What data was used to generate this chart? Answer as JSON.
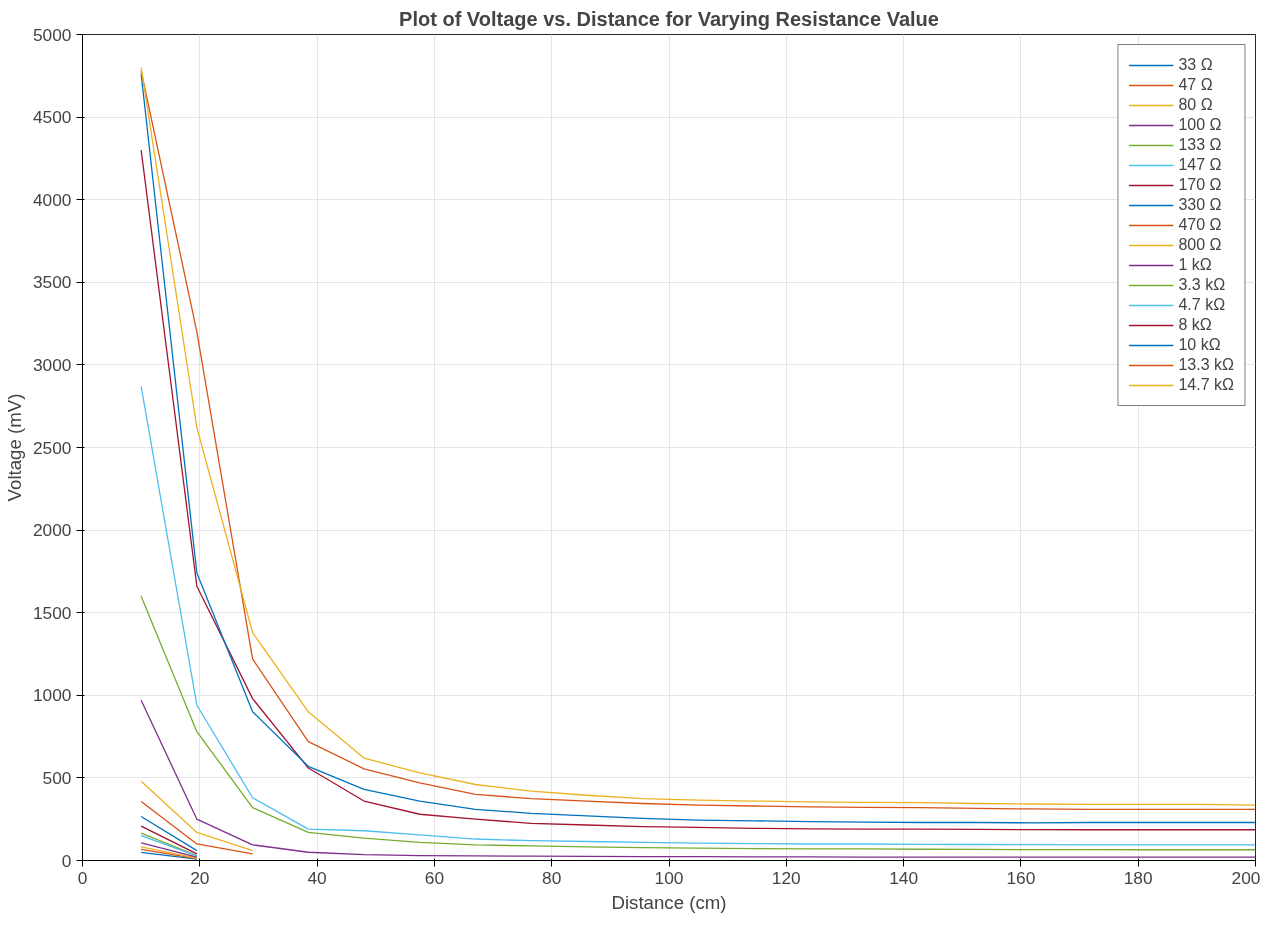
{
  "chart_data": {
    "type": "line",
    "title": "Plot of Voltage vs. Distance for Varying Resistance Value",
    "xlabel": "Distance (cm)",
    "ylabel": "Voltage (mV)",
    "x": [
      10,
      19.5,
      29,
      38.5,
      48,
      57.5,
      67,
      76.5,
      86,
      95.5,
      105,
      114.5,
      124,
      133.5,
      143,
      152.5,
      162,
      171.5,
      181,
      190.5,
      200
    ],
    "xlim": [
      0,
      200
    ],
    "ylim": [
      0,
      5000
    ],
    "xticks": [
      0,
      20,
      40,
      60,
      80,
      100,
      120,
      140,
      160,
      180,
      200
    ],
    "yticks": [
      0,
      500,
      1000,
      1500,
      2000,
      2500,
      3000,
      3500,
      4000,
      4500,
      5000
    ],
    "grid": true,
    "legend": "top right",
    "line_style": "solid",
    "marker": "none",
    "series": [
      {
        "name": "33 Ω",
        "color": "#0072bd",
        "values": [
          49,
          8,
          null,
          null,
          null,
          null,
          null,
          null,
          null,
          null,
          null,
          null,
          null,
          null,
          null,
          null,
          null,
          null,
          null,
          null,
          null
        ]
      },
      {
        "name": "47 Ω",
        "color": "#d95319",
        "values": [
          67,
          12,
          null,
          null,
          null,
          null,
          null,
          null,
          null,
          null,
          null,
          null,
          null,
          null,
          null,
          null,
          null,
          null,
          null,
          null,
          null
        ]
      },
      {
        "name": "80 Ω",
        "color": "#edb120",
        "values": [
          82,
          15,
          null,
          null,
          null,
          null,
          null,
          null,
          null,
          null,
          null,
          null,
          null,
          null,
          null,
          null,
          null,
          null,
          null,
          null,
          null
        ]
      },
      {
        "name": "100 Ω",
        "color": "#7e2f8e",
        "values": [
          106,
          20,
          null,
          null,
          null,
          null,
          null,
          null,
          null,
          null,
          null,
          null,
          null,
          null,
          null,
          null,
          null,
          null,
          null,
          null,
          null
        ]
      },
      {
        "name": "133 Ω",
        "color": "#77ac30",
        "values": [
          166,
          30,
          null,
          null,
          null,
          null,
          null,
          null,
          null,
          null,
          null,
          null,
          null,
          null,
          null,
          null,
          null,
          null,
          null,
          null,
          null
        ]
      },
      {
        "name": "147 Ω",
        "color": "#4dbeee",
        "values": [
          150,
          28,
          null,
          null,
          null,
          null,
          null,
          null,
          null,
          null,
          null,
          null,
          null,
          null,
          null,
          null,
          null,
          null,
          null,
          null,
          null
        ]
      },
      {
        "name": "170 Ω",
        "color": "#a2142f",
        "values": [
          208,
          40,
          null,
          null,
          null,
          null,
          null,
          null,
          null,
          null,
          null,
          null,
          null,
          null,
          null,
          null,
          null,
          null,
          null,
          null,
          null
        ]
      },
      {
        "name": "330 Ω",
        "color": "#0072bd",
        "values": [
          266,
          60,
          null,
          null,
          null,
          null,
          null,
          null,
          null,
          null,
          null,
          null,
          null,
          null,
          null,
          null,
          null,
          null,
          null,
          null,
          null
        ]
      },
      {
        "name": "470 Ω",
        "color": "#d95319",
        "values": [
          357,
          100,
          40,
          null,
          null,
          null,
          null,
          null,
          null,
          null,
          null,
          null,
          null,
          null,
          null,
          null,
          null,
          null,
          null,
          null,
          null
        ]
      },
      {
        "name": "800 Ω",
        "color": "#edb120",
        "values": [
          480,
          170,
          60,
          null,
          null,
          null,
          null,
          null,
          null,
          null,
          null,
          null,
          null,
          null,
          null,
          null,
          null,
          null,
          null,
          null,
          null
        ]
      },
      {
        "name": "1 kΩ",
        "color": "#7e2f8e",
        "values": [
          970,
          250,
          95,
          50,
          35,
          30,
          28,
          26,
          25,
          24,
          23,
          22,
          22,
          21,
          21,
          20,
          20,
          20,
          20,
          20,
          20
        ]
      },
      {
        "name": "3.3 kΩ",
        "color": "#77ac30",
        "values": [
          1600,
          780,
          320,
          170,
          135,
          110,
          95,
          88,
          82,
          78,
          75,
          72,
          70,
          70,
          68,
          67,
          66,
          66,
          65,
          65,
          65
        ]
      },
      {
        "name": "4.7 kΩ",
        "color": "#4dbeee",
        "values": [
          2870,
          940,
          380,
          190,
          180,
          155,
          130,
          120,
          115,
          110,
          105,
          102,
          100,
          100,
          98,
          97,
          96,
          95,
          95,
          95,
          95
        ]
      },
      {
        "name": "8 kΩ",
        "color": "#a2142f",
        "values": [
          4300,
          1660,
          980,
          560,
          360,
          280,
          250,
          225,
          215,
          205,
          200,
          195,
          192,
          190,
          190,
          188,
          187,
          186,
          186,
          186,
          186
        ]
      },
      {
        "name": "10 kΩ",
        "color": "#0072bd",
        "values": [
          4760,
          1740,
          900,
          570,
          430,
          360,
          310,
          285,
          270,
          255,
          245,
          240,
          235,
          232,
          230,
          230,
          228,
          230,
          230,
          230,
          230
        ]
      },
      {
        "name": "13.3 kΩ",
        "color": "#d95319",
        "values": [
          4780,
          3200,
          1220,
          720,
          555,
          470,
          400,
          375,
          360,
          345,
          335,
          330,
          325,
          322,
          320,
          315,
          312,
          310,
          310,
          310,
          310
        ]
      },
      {
        "name": "14.7 kΩ",
        "color": "#edb120",
        "values": [
          4800,
          2620,
          1380,
          900,
          620,
          530,
          460,
          420,
          395,
          375,
          365,
          360,
          355,
          352,
          350,
          345,
          342,
          340,
          340,
          340,
          335
        ]
      }
    ]
  }
}
